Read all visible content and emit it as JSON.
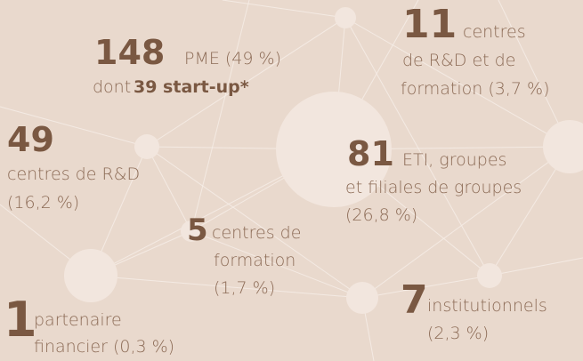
{
  "items": [
    {
      "number": "148",
      "lines": [
        "PME (49 %)",
        "dont",
        "39 start-up*"
      ]
    },
    {
      "number": "11",
      "lines": [
        "centres",
        "de R&D et de",
        "formation (3,7 %)"
      ]
    },
    {
      "number": "49",
      "lines": [
        "centres de R&D",
        "(16,2 %)"
      ]
    },
    {
      "number": "81",
      "lines": [
        "ETI, groupes",
        "et filiales de groupes",
        "(26,8 %)"
      ]
    },
    {
      "number": "5",
      "lines": [
        "centres de",
        "formation",
        "(1,7 %)"
      ]
    },
    {
      "number": "1",
      "lines": [
        "partenaire",
        "financier (0,3 %)"
      ]
    },
    {
      "number": "7",
      "lines": [
        "institutionnels",
        "(2,3 %)"
      ]
    }
  ]
}
